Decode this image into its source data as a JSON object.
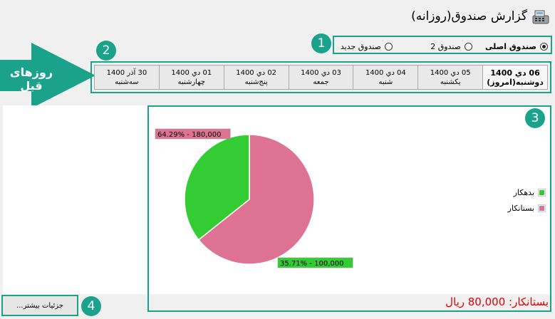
{
  "window": {
    "title": "گزارش صندوق(روزانه)",
    "icon": "cash-register-icon"
  },
  "funds": {
    "options": [
      {
        "label": "صندوق اصلی",
        "checked": true
      },
      {
        "label": "صندوق 2",
        "checked": false
      },
      {
        "label": "صندوق جدید",
        "checked": false
      }
    ]
  },
  "days": [
    {
      "date": "06 دي 1400",
      "weekday": "دوشنبه(امروز)"
    },
    {
      "date": "05 دي 1400",
      "weekday": "یکشنبه"
    },
    {
      "date": "04 دي 1400",
      "weekday": "شنبه"
    },
    {
      "date": "03 دي 1400",
      "weekday": "جمعه"
    },
    {
      "date": "02 دي 1400",
      "weekday": "پنج‌شنبه"
    },
    {
      "date": "01 دي 1400",
      "weekday": "چهارشنبه"
    },
    {
      "date": "30 آذر 1400",
      "weekday": "سه‌شنبه"
    }
  ],
  "annotations": {
    "arrow_label": "روزهای قبل",
    "badges": [
      "1",
      "2",
      "3",
      "4"
    ],
    "accent_color": "#1aa38a"
  },
  "chart_data": {
    "type": "pie",
    "slices": [
      {
        "name": "بستانکار",
        "value": 180000,
        "percent": 64.29,
        "label": "64.29% - 180,000",
        "color": "#de7293"
      },
      {
        "name": "بدهکار",
        "value": 100000,
        "percent": 35.71,
        "label": "35.71% - 100,000",
        "color": "#33cc33"
      }
    ],
    "legend": [
      {
        "name": "بدهکار",
        "color": "#33cc33"
      },
      {
        "name": "بستانکار",
        "color": "#de7293"
      }
    ],
    "legend_position": "right"
  },
  "balance_text": "بستانکار: 80,000 ریال",
  "details_button": "جزئیات بیشتر..."
}
